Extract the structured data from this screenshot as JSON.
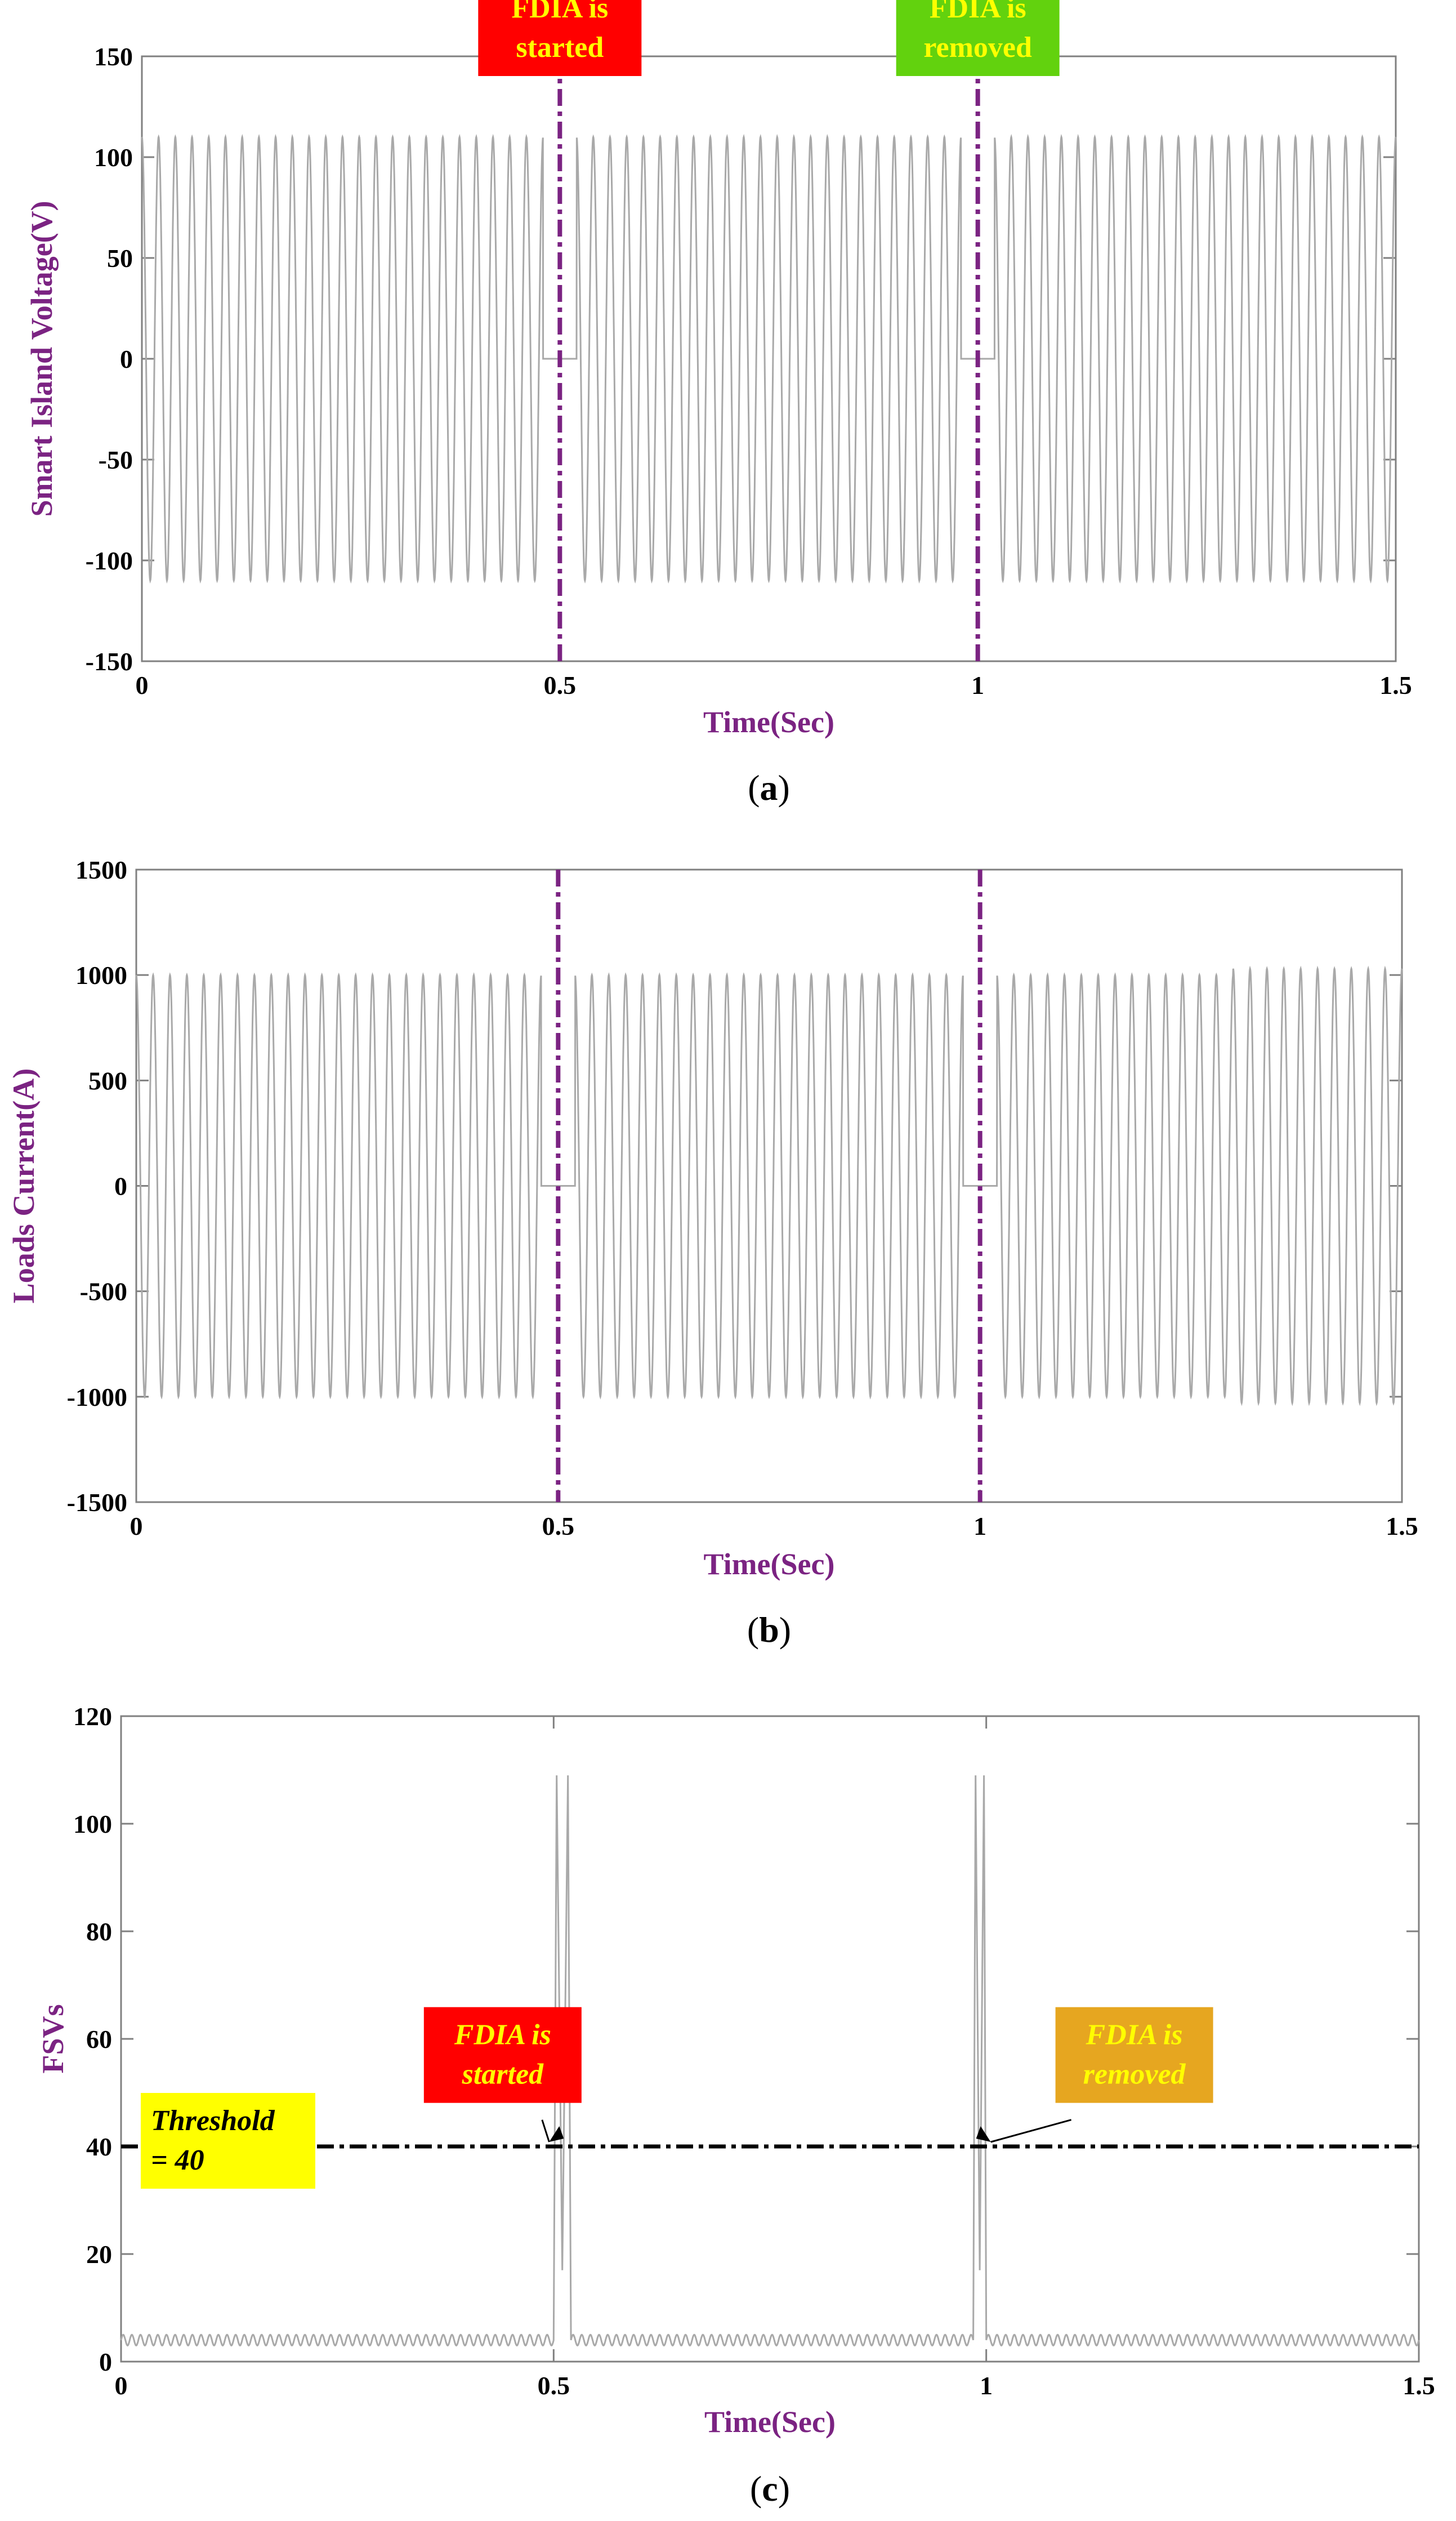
{
  "colors": {
    "trace": "#a9a9a9",
    "event_line": "#7b2382",
    "axis_label": "#7b2382",
    "threshold_line": "#000000",
    "ann_red": "#ff0000",
    "ann_green": "#62d20e",
    "ann_orange": "#e6a620",
    "ann_yellow": "#ffff00",
    "ann_text_yellow": "#ffff00",
    "ann_text_black": "#000000"
  },
  "chart_data": [
    {
      "id": "a",
      "type": "line",
      "caption": "a",
      "xlabel": "Time(Sec)",
      "ylabel": "Smart Island Voltage(V)",
      "xlim": [
        0,
        1.5
      ],
      "ylim": [
        -150,
        150
      ],
      "xticks": [
        0,
        0.5,
        1,
        1.5
      ],
      "xtick_labels": [
        "0",
        "0.5",
        "1",
        "1.5"
      ],
      "yticks": [
        -150,
        -100,
        -50,
        0,
        50,
        100,
        150
      ],
      "ytick_labels": [
        "-150",
        "-100",
        "-50",
        "0",
        "50",
        "100",
        "150"
      ],
      "signal": {
        "amplitude": 110,
        "frequency_hz": 50,
        "zero_intervals": [
          [
            0.48,
            0.52
          ],
          [
            0.98,
            1.02
          ]
        ]
      },
      "event_lines": [
        0.5,
        1.0
      ],
      "annotations": [
        {
          "lines": [
            "FDIA is",
            "started"
          ],
          "x": 0.5,
          "y": 135,
          "style": "red"
        },
        {
          "lines": [
            "FDIA is",
            "removed"
          ],
          "x": 1.0,
          "y": 135,
          "style": "green"
        }
      ]
    },
    {
      "id": "b",
      "type": "line",
      "caption": "b",
      "xlabel": "Time(Sec)",
      "ylabel": "Loads Current(A)",
      "xlim": [
        0,
        1.5
      ],
      "ylim": [
        -1500,
        1500
      ],
      "xticks": [
        0,
        0.5,
        1,
        1.5
      ],
      "xtick_labels": [
        "0",
        "0.5",
        "1",
        "1.5"
      ],
      "yticks": [
        -1500,
        -1000,
        -500,
        0,
        500,
        1000,
        1500
      ],
      "ytick_labels": [
        "-1500",
        "-1000",
        "-500",
        "0",
        "500",
        "1000",
        "1500"
      ],
      "signal": {
        "amplitude": 1000,
        "frequency_hz": 50,
        "zero_intervals": [
          [
            0.48,
            0.52
          ],
          [
            0.98,
            1.02
          ]
        ],
        "amplitude_after": {
          "t": 1.3,
          "value": 1030
        }
      },
      "event_lines": [
        0.5,
        1.0
      ],
      "annotations": []
    },
    {
      "id": "c",
      "type": "line",
      "caption": "c",
      "xlabel": "Time(Sec)",
      "ylabel": "FSVs",
      "xlim": [
        0,
        1.5
      ],
      "ylim": [
        0,
        120
      ],
      "xticks": [
        0,
        0.5,
        1,
        1.5
      ],
      "xtick_labels": [
        "0",
        "0.5",
        "1",
        "1.5"
      ],
      "yticks": [
        0,
        20,
        40,
        60,
        80,
        100,
        120
      ],
      "ytick_labels": [
        "0",
        "20",
        "40",
        "60",
        "80",
        "100",
        "120"
      ],
      "signal": {
        "baseline_low": 3,
        "baseline_high": 5,
        "spikes": [
          {
            "t_start": 0.5,
            "t_end": 0.52,
            "peak": 109,
            "dip": 17
          },
          {
            "t_start": 0.985,
            "t_end": 1.0,
            "peak": 109,
            "dip": 17
          }
        ]
      },
      "threshold": 40,
      "annotations": [
        {
          "lines": [
            "Threshold",
            "= 40"
          ],
          "x": 0.04,
          "y": 40,
          "style": "yellow",
          "italic": true
        },
        {
          "lines": [
            "FDIA is",
            "started"
          ],
          "x": 0.35,
          "y": 57,
          "style": "red_italic",
          "italic": true,
          "arrow_to": [
            0.5,
            40
          ]
        },
        {
          "lines": [
            "FDIA is",
            "removed"
          ],
          "x": 1.08,
          "y": 57,
          "style": "orange_italic",
          "italic": true,
          "arrow_to": [
            1.0,
            40
          ]
        }
      ]
    }
  ]
}
